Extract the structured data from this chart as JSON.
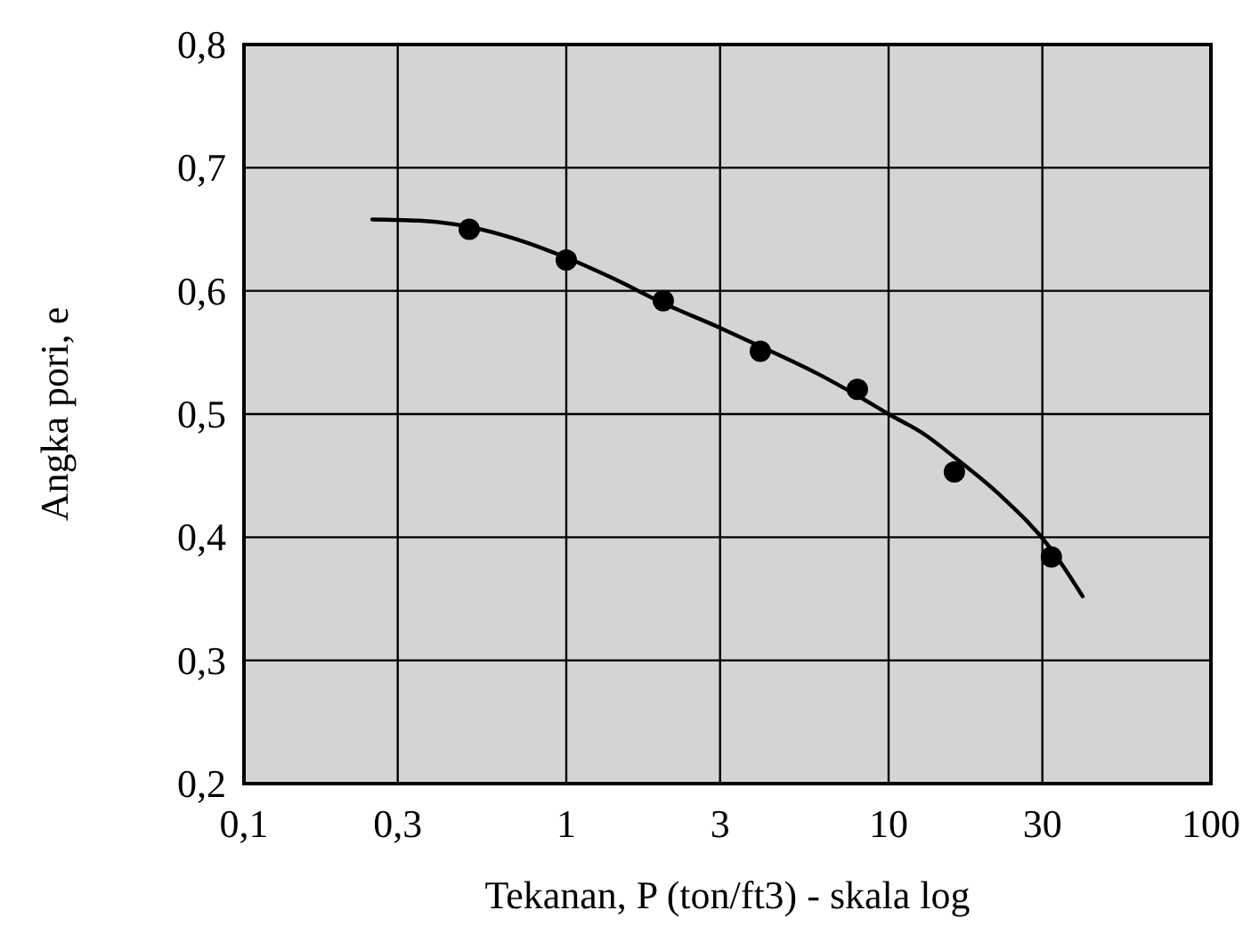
{
  "chart_data": {
    "type": "scatter",
    "xlabel": "Tekanan, P (ton/ft3) - skala log",
    "ylabel": "Angka pori, e",
    "log": "x",
    "grid": true,
    "xlim": [
      0.1,
      100
    ],
    "ylim": [
      0.2,
      0.8
    ],
    "xticks": [
      {
        "value": 0.1,
        "label": "0,1"
      },
      {
        "value": 0.3,
        "label": "0,3"
      },
      1,
      3,
      10,
      30,
      100
    ],
    "yticks": [
      {
        "value": 0.2,
        "label": "0,2"
      },
      {
        "value": 0.3,
        "label": "0,3"
      },
      {
        "value": 0.4,
        "label": "0,4"
      },
      {
        "value": 0.5,
        "label": "0,5"
      },
      {
        "value": 0.6,
        "label": "0,6"
      },
      {
        "value": 0.7,
        "label": "0,7"
      },
      {
        "value": 0.8,
        "label": "0,8"
      }
    ],
    "series": [
      {
        "type": "line",
        "color": "#000000",
        "marker": "none",
        "line_style": "solid",
        "x": [
          0.25,
          0.35,
          0.5,
          0.7,
          1,
          1.4,
          2,
          3,
          4,
          6,
          8,
          10,
          13,
          16,
          22,
          32,
          40
        ],
        "values": [
          0.658,
          0.657,
          0.652,
          0.642,
          0.627,
          0.61,
          0.59,
          0.57,
          0.555,
          0.533,
          0.515,
          0.5,
          0.483,
          0.465,
          0.435,
          0.39,
          0.352
        ]
      },
      {
        "color": "#000000",
        "marker": "circle",
        "x": [
          0.5,
          1,
          2,
          4,
          8,
          16,
          32
        ],
        "values": [
          0.65,
          0.625,
          0.592,
          0.551,
          0.52,
          0.453,
          0.384
        ]
      }
    ]
  }
}
